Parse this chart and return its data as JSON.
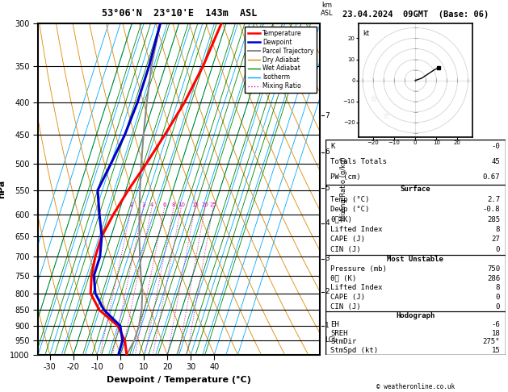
{
  "title_left": "53°06'N  23°10'E  143m  ASL",
  "title_right": "23.04.2024  09GMT  (Base: 06)",
  "xlabel": "Dewpoint / Temperature (°C)",
  "ylabel_left": "hPa",
  "temp_label": "Temperature",
  "dewp_label": "Dewpoint",
  "parcel_label": "Parcel Trajectory",
  "dry_label": "Dry Adiabat",
  "wet_label": "Wet Adiabat",
  "isotherm_label": "Isotherm",
  "mixing_label": "Mixing Ratio",
  "pressure_levels": [
    300,
    350,
    400,
    450,
    500,
    550,
    600,
    650,
    700,
    750,
    800,
    850,
    900,
    950,
    1000
  ],
  "pressure_labels": [
    "300",
    "350",
    "400",
    "450",
    "500",
    "550",
    "600",
    "650",
    "700",
    "750",
    "800",
    "850",
    "900",
    "950",
    "1000"
  ],
  "temp_x": [
    -2,
    -4,
    -7,
    -11,
    -15,
    -19,
    -22,
    -24,
    -24,
    -23,
    -21,
    -15,
    -5,
    0,
    2.7
  ],
  "temp_p": [
    300,
    350,
    400,
    450,
    500,
    550,
    600,
    650,
    700,
    750,
    800,
    850,
    900,
    950,
    1000
  ],
  "dewp_x": [
    -28,
    -27,
    -27,
    -28,
    -30,
    -32,
    -28,
    -24,
    -22,
    -22,
    -19,
    -13,
    -4,
    -1,
    -0.8
  ],
  "dewp_p": [
    300,
    350,
    400,
    450,
    500,
    550,
    600,
    650,
    700,
    750,
    800,
    850,
    900,
    950,
    1000
  ],
  "parcel_x": [
    -28,
    -26,
    -23,
    -20,
    -17,
    -14,
    -11,
    -8,
    -5,
    -2,
    1,
    3,
    4,
    4,
    2.7
  ],
  "parcel_p": [
    300,
    350,
    400,
    450,
    500,
    550,
    600,
    650,
    700,
    750,
    800,
    850,
    900,
    950,
    1000
  ],
  "xlim_T": [
    -35,
    40
  ],
  "p_min": 300,
  "p_max": 1000,
  "skew_deg": 45,
  "mixing_ratio_values": [
    2,
    3,
    4,
    6,
    8,
    10,
    15,
    20,
    25
  ],
  "mixing_ratio_labels": [
    "2",
    "3",
    "4",
    "6",
    "8",
    "10",
    "15",
    "20",
    "25"
  ],
  "km_levels": [
    1,
    2,
    3,
    4,
    5,
    6,
    7
  ],
  "km_pressures": [
    900,
    795,
    705,
    620,
    546,
    479,
    419
  ],
  "lcl_pressure": 948,
  "bg_color": "#ffffff",
  "temp_color": "#ff0000",
  "dewp_color": "#0000cc",
  "parcel_color": "#888888",
  "dry_adiabat_color": "#dd8800",
  "wet_adiabat_color": "#008800",
  "isotherm_color": "#00aaff",
  "mixing_ratio_color": "#dd00bb",
  "barb_colors": [
    "#00ccff",
    "#00ccff",
    "#00ccff",
    "#00ccff",
    "#00ccff",
    "#00ccff",
    "#00cccc",
    "#00aaaa",
    "#008800",
    "#008800",
    "#aaaa00",
    "#aaaa00",
    "#ffaa00",
    "#ffaa00",
    "#ffff00"
  ],
  "stats": {
    "K": "-0",
    "Totals_Totals": "45",
    "PW_cm": "0.67",
    "Surface_Temp": "2.7",
    "Surface_Dewp": "-0.8",
    "Surface_theta_e": "285",
    "Surface_LI": "8",
    "Surface_CAPE": "27",
    "Surface_CIN": "0",
    "MU_Pressure": "750",
    "MU_theta_e": "286",
    "MU_LI": "8",
    "MU_CAPE": "0",
    "MU_CIN": "0",
    "EH": "-6",
    "SREH": "18",
    "StmDir": "275",
    "StmSpd": "15"
  }
}
